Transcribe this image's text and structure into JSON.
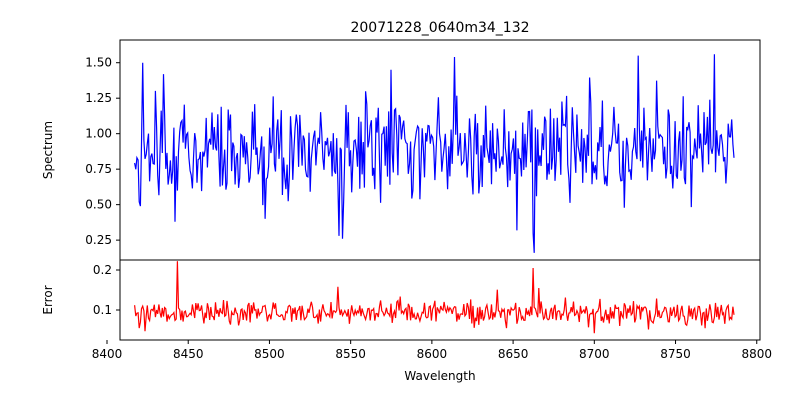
{
  "chart_data": [
    {
      "type": "line",
      "title": "20071228_0640m34_132",
      "xlabel": "",
      "ylabel": "Spectrum",
      "xlim": [
        8408,
        8802
      ],
      "ylim": [
        0.11,
        1.66
      ],
      "xticks": [
        8400,
        8450,
        8500,
        8550,
        8600,
        8650,
        8700,
        8750,
        8800
      ],
      "yticks": [
        0.25,
        0.5,
        0.75,
        1.0,
        1.25,
        1.5
      ],
      "ytick_labels": [
        "0.25",
        "0.50",
        "0.75",
        "1.00",
        "1.25",
        "1.50"
      ],
      "series": [
        {
          "color": "#0000ff",
          "x_range": [
            8417,
            8786
          ],
          "n_points": 520,
          "baseline": 0.9,
          "noise": 0.2,
          "features": [
            {
              "x": 8420,
              "y": 0.52
            },
            {
              "x": 8422,
              "y": 1.5
            },
            {
              "x": 8435,
              "y": 1.42
            },
            {
              "x": 8442,
              "y": 0.38
            },
            {
              "x": 8497,
              "y": 0.4
            },
            {
              "x": 8543,
              "y": 0.28
            },
            {
              "x": 8545,
              "y": 0.26
            },
            {
              "x": 8575,
              "y": 1.45
            },
            {
              "x": 8614,
              "y": 1.54
            },
            {
              "x": 8662,
              "y": 0.3
            },
            {
              "x": 8663,
              "y": 0.16
            },
            {
              "x": 8727,
              "y": 1.55
            },
            {
              "x": 8774,
              "y": 1.56
            },
            {
              "x": 8786,
              "y": 0.83
            }
          ]
        }
      ]
    },
    {
      "type": "line",
      "title": "",
      "xlabel": "Wavelength",
      "ylabel": "Error",
      "xlim": [
        8408,
        8802
      ],
      "ylim": [
        0.025,
        0.225
      ],
      "xticks": [
        8400,
        8450,
        8500,
        8550,
        8600,
        8650,
        8700,
        8750,
        8800
      ],
      "yticks": [
        0.1,
        0.2
      ],
      "ytick_labels": [
        "0.1",
        "0.2"
      ],
      "series": [
        {
          "color": "#ff0000",
          "x_range": [
            8417,
            8786
          ],
          "n_points": 520,
          "baseline": 0.092,
          "noise": 0.018,
          "features": [
            {
              "x": 8443,
              "y": 0.222
            },
            {
              "x": 8542,
              "y": 0.158
            },
            {
              "x": 8662,
              "y": 0.205
            },
            {
              "x": 8666,
              "y": 0.155
            },
            {
              "x": 8700,
              "y": 0.042
            },
            {
              "x": 8786,
              "y": 0.088
            }
          ]
        }
      ]
    }
  ]
}
